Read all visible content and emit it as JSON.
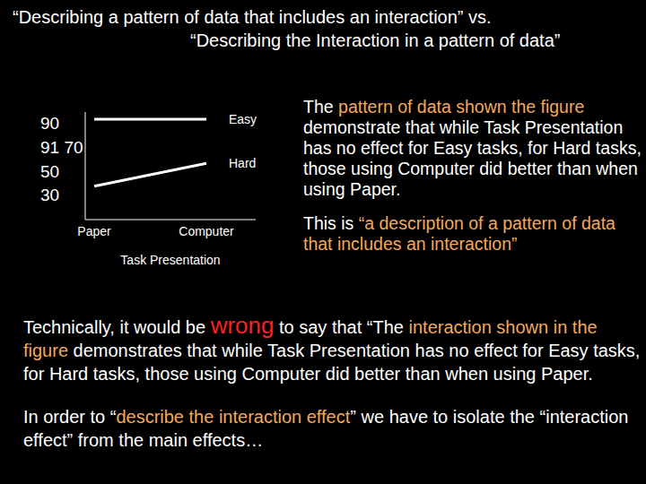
{
  "title": [
    "“Describing a pattern of data that includes an interaction”   vs.",
    "“Describing the Interaction in a pattern of data”"
  ],
  "right_text": [
    [
      {
        "text": "The ",
        "color": "#ffffff"
      },
      {
        "text": "pattern of data shown the figure",
        "color": "#f4a95a"
      },
      {
        "text": " demonstrate that while Task Presentation has no effect for Easy tasks, for Hard tasks, those using Computer did better than when using Paper.",
        "color": "#ffffff"
      }
    ],
    [
      {
        "text": "This is ",
        "color": "#ffffff"
      },
      {
        "text": "“a description of a pattern of data that includes an interaction”",
        "color": "#f4a95a"
      }
    ]
  ],
  "bottom_text": [
    [
      {
        "text": "Technically, it would be ",
        "color": "#ffffff"
      },
      {
        "text": "wrong",
        "color": "#ff2020",
        "style": "large"
      },
      {
        "text": " to say that “The ",
        "color": "#ffffff"
      },
      {
        "text": "interaction shown in the figure",
        "color": "#f4a95a"
      },
      {
        "text": " demonstrates that while Task Presentation has no effect for Easy tasks, for Hard tasks, those using Computer did better than when  using Paper.",
        "color": "#ffffff"
      }
    ],
    [
      {
        "text": "In order to “",
        "color": "#ffffff"
      },
      {
        "text": "describe the interaction effect",
        "color": "#f4a95a"
      },
      {
        "text": "” we have to isolate the “interaction effect” from the main effects…",
        "color": "#ffffff"
      }
    ]
  ],
  "chart_data": {
    "type": "line",
    "categories": [
      "Paper",
      "Computer"
    ],
    "series": [
      {
        "name": "Easy",
        "color": "#ffffff",
        "values": [
          94,
          94
        ]
      },
      {
        "name": "Hard",
        "color": "#ffffff",
        "values": [
          38,
          57
        ]
      }
    ],
    "x_label": "Task Presentation",
    "ylim": [
      10,
      100
    ],
    "yticks": [
      30,
      50,
      {
        "value": 70,
        "label": "91 70"
      },
      90
    ]
  }
}
